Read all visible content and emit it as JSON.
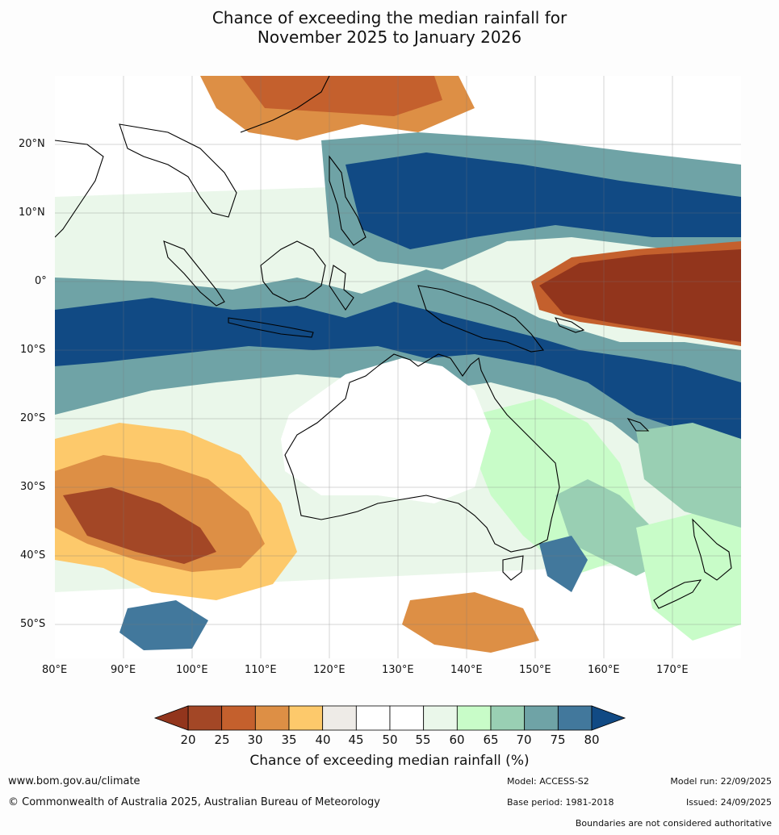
{
  "title": {
    "line1": "Chance of exceeding the median rainfall for",
    "line2": "November 2025 to January 2026"
  },
  "map": {
    "lat_labels": [
      "20°N",
      "10°N",
      "0°",
      "10°S",
      "20°S",
      "30°S",
      "40°S",
      "50°S"
    ],
    "lon_labels": [
      "80°E",
      "90°E",
      "100°E",
      "110°E",
      "120°E",
      "130°E",
      "140°E",
      "150°E",
      "160°E",
      "170°E"
    ],
    "lon_range": [
      80,
      180
    ],
    "lat_range": [
      -55,
      30
    ]
  },
  "colorbar": {
    "ticks": [
      "20",
      "25",
      "30",
      "35",
      "40",
      "45",
      "50",
      "55",
      "60",
      "65",
      "70",
      "75",
      "80"
    ],
    "colors": [
      "#a34726",
      "#c4602d",
      "#dd8f45",
      "#fdc96b",
      "#eeebe7",
      "#ffffff",
      "#ffffff",
      "#eaf7ea",
      "#c8fcc8",
      "#99cfb3",
      "#6fa3a6",
      "#42789c"
    ],
    "low_color": "#92351c",
    "high_color": "#114a84",
    "label": "Chance of exceeding median rainfall (%)"
  },
  "footer": {
    "url": "www.bom.gov.au/climate",
    "copyright": "© Commonwealth of Australia 2025, Australian Bureau of Meteorology",
    "model": "Model: ACCESS-S2",
    "base_period": "Base period: 1981-2018",
    "model_run": "Model run: 22/09/2025",
    "issued": "Issued: 24/09/2025",
    "disclaimer": "Boundaries are not considered authoritative"
  }
}
